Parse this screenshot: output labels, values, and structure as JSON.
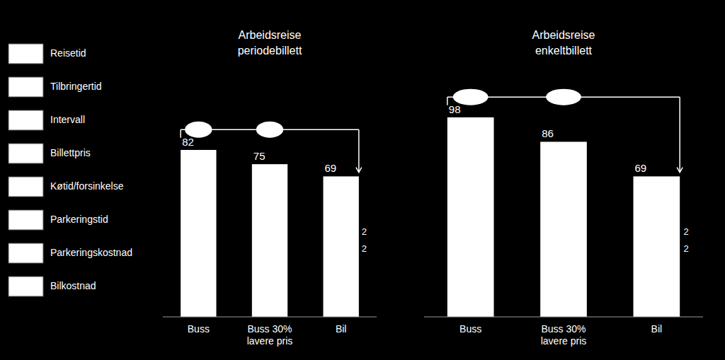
{
  "chart_data": [
    {
      "type": "bar",
      "title": "Arbeidsreise\nperiodebillett",
      "categories": [
        "Buss",
        "Buss 30%\nlavere pris",
        "Bil"
      ],
      "values": [
        82,
        75,
        69
      ],
      "color": "#ffffff",
      "ylim": [
        0,
        115
      ],
      "data_labels": true,
      "tick_labels": "x",
      "grid": false,
      "annotations": [
        "2",
        "2",
        "Reisetid",
        "Tilbringertid",
        "Intervall",
        "Billettpris",
        "Køtid/forsinkelse",
        "Parkeringstid",
        "Parkeringskostnad",
        "Bilkostnad"
      ]
    },
    {
      "type": "bar",
      "title": "Arbeidsreise\nenkeltbillett",
      "categories": [
        "Buss",
        "Buss 30%\nlavere pris",
        "Bil"
      ],
      "values": [
        98,
        86,
        69
      ],
      "color": "#ffffff",
      "ylim": [
        0,
        115
      ],
      "data_labels": true,
      "tick_labels": "x",
      "grid": false,
      "annotations": [
        "2",
        "2"
      ]
    }
  ]
}
